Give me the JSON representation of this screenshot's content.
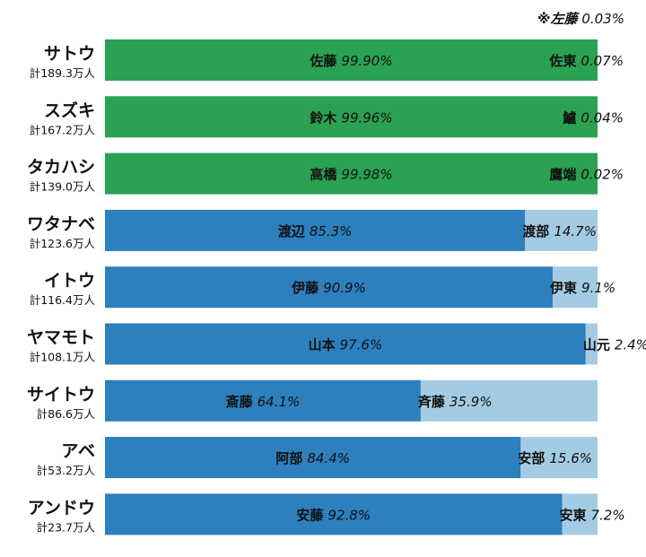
{
  "chart_data": {
    "type": "bar",
    "stacked": true,
    "orientation": "horizontal",
    "note": {
      "name": "※左藤",
      "pct": "0.03%"
    },
    "colors": {
      "green": "#2aa252",
      "blue": "#2e7fbd",
      "lightblue": "#a3cce4"
    },
    "rows": [
      {
        "reading": "サトウ",
        "total": "計189.3万人",
        "color": "green",
        "segments": [
          {
            "name": "佐藤",
            "label": "99.90%",
            "value": 99.9
          },
          {
            "name": "佐東",
            "label": "0.07%",
            "value": 0.07
          }
        ]
      },
      {
        "reading": "スズキ",
        "total": "計167.2万人",
        "color": "green",
        "segments": [
          {
            "name": "鈴木",
            "label": "99.96%",
            "value": 99.96
          },
          {
            "name": "鱸",
            "label": "0.04%",
            "value": 0.04
          }
        ]
      },
      {
        "reading": "タカハシ",
        "total": "計139.0万人",
        "color": "green",
        "segments": [
          {
            "name": "高橋",
            "label": "99.98%",
            "value": 99.98
          },
          {
            "name": "鷹端",
            "label": "0.02%",
            "value": 0.02
          }
        ]
      },
      {
        "reading": "ワタナベ",
        "total": "計123.6万人",
        "color": "blue",
        "segments": [
          {
            "name": "渡辺",
            "label": "85.3%",
            "value": 85.3
          },
          {
            "name": "渡部",
            "label": "14.7%",
            "value": 14.7
          }
        ]
      },
      {
        "reading": "イトウ",
        "total": "計116.4万人",
        "color": "blue",
        "segments": [
          {
            "name": "伊藤",
            "label": "90.9%",
            "value": 90.9
          },
          {
            "name": "伊東",
            "label": "9.1%",
            "value": 9.1
          }
        ]
      },
      {
        "reading": "ヤマモト",
        "total": "計108.1万人",
        "color": "blue",
        "segments": [
          {
            "name": "山本",
            "label": "97.6%",
            "value": 97.6
          },
          {
            "name": "山元",
            "label": "2.4%",
            "value": 2.4
          }
        ]
      },
      {
        "reading": "サイトウ",
        "total": "計86.6万人",
        "color": "blue",
        "segments": [
          {
            "name": "斎藤",
            "label": "64.1%",
            "value": 64.1
          },
          {
            "name": "斉藤",
            "label": "35.9%",
            "value": 35.9
          }
        ]
      },
      {
        "reading": "アベ",
        "total": "計53.2万人",
        "color": "blue",
        "segments": [
          {
            "name": "阿部",
            "label": "84.4%",
            "value": 84.4
          },
          {
            "name": "安部",
            "label": "15.6%",
            "value": 15.6
          }
        ]
      },
      {
        "reading": "アンドウ",
        "total": "計23.7万人",
        "color": "blue",
        "segments": [
          {
            "name": "安藤",
            "label": "92.8%",
            "value": 92.8
          },
          {
            "name": "安東",
            "label": "7.2%",
            "value": 7.2
          }
        ]
      }
    ]
  }
}
